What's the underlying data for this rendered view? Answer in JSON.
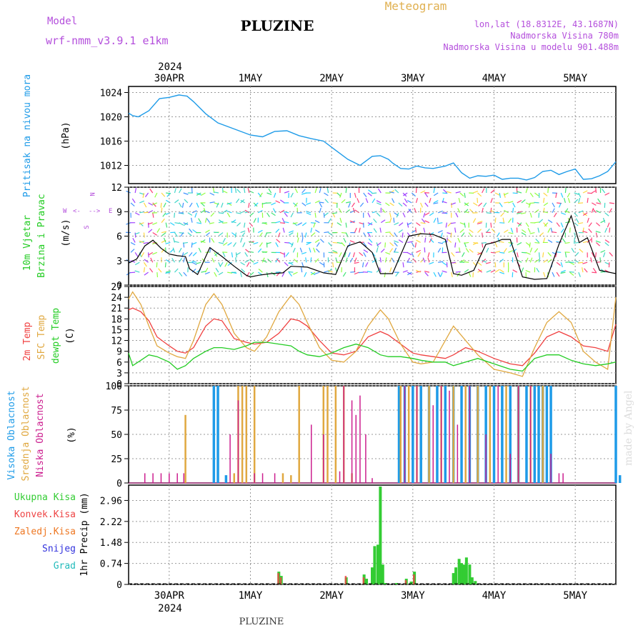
{
  "header": {
    "model_label": "Model",
    "model_value": "wrf-nmm_v3.9.1  e1km",
    "title": "PLUZINE",
    "meteogram": "Meteogram",
    "lonlat": "lon,lat (18.8312E, 43.1687N)",
    "altitude": "Nadmorska Visina 780m",
    "model_altitude": "Nadmorska Visina u modelu 901.488m",
    "footer": "PLUZINE",
    "watermark": "made by Angel"
  },
  "time_axis": {
    "year": "2024",
    "days": [
      "30APR",
      "1MAY",
      "2MAY",
      "3MAY",
      "4MAY",
      "5MAY"
    ],
    "day_positions": [
      0.5,
      1.5,
      2.5,
      3.5,
      4.5,
      5.5
    ],
    "range": [
      0,
      6
    ]
  },
  "colors": {
    "pressure": "#1e9be8",
    "temp2m": "#f04040",
    "sfc": "#e0a840",
    "dewpt": "#22cc22",
    "high_cloud": "#1e9be8",
    "mid_cloud": "#e0a840",
    "low_cloud": "#cc1f8f",
    "total_precip": "#33cc33",
    "conv_precip": "#ee4444",
    "frozen_precip": "#ee7722",
    "snow": "#3333dd",
    "grad": "#22bbbb",
    "model_text": "#b44fdc",
    "meteogram_text": "#e0b050"
  },
  "chart_data": [
    {
      "type": "line",
      "name": "pressure",
      "ylabel": "Pritisak na nivou mora",
      "unit": "(hPa)",
      "ylim": [
        1009,
        1025
      ],
      "yticks": [
        1012,
        1016,
        1020,
        1024
      ],
      "x": [
        0.0,
        0.05,
        0.12,
        0.25,
        0.38,
        0.5,
        0.62,
        0.72,
        0.8,
        0.95,
        1.1,
        1.3,
        1.5,
        1.65,
        1.8,
        1.95,
        2.1,
        2.25,
        2.4,
        2.55,
        2.7,
        2.85,
        3.0,
        3.1,
        3.2,
        3.25,
        3.35,
        3.45,
        3.55,
        3.65,
        3.75,
        3.9,
        4.0,
        4.1,
        4.2,
        4.3,
        4.4,
        4.5,
        4.6,
        4.7,
        4.8,
        4.9,
        5.0,
        5.1,
        5.2,
        5.3,
        5.4,
        5.5,
        5.6,
        5.7,
        5.8,
        5.9,
        6.0
      ],
      "values": [
        1020.6,
        1020.2,
        1020.0,
        1021.0,
        1023.0,
        1023.2,
        1023.6,
        1023.4,
        1022.5,
        1020.5,
        1019.0,
        1018.0,
        1017.0,
        1016.7,
        1017.6,
        1017.7,
        1016.9,
        1016.4,
        1016.0,
        1014.5,
        1013.0,
        1012.0,
        1013.5,
        1013.6,
        1013.0,
        1012.4,
        1011.5,
        1011.4,
        1011.9,
        1011.6,
        1011.5,
        1011.9,
        1012.4,
        1010.8,
        1009.9,
        1010.3,
        1010.2,
        1010.4,
        1009.7,
        1009.9,
        1009.9,
        1009.6,
        1010.0,
        1011.0,
        1011.2,
        1010.5,
        1011.0,
        1011.4,
        1009.7,
        1009.8,
        1010.3,
        1011.0,
        1012.6
      ]
    },
    {
      "type": "line",
      "name": "wind",
      "ylabel": "10m Vjetar Brzina i Pravac",
      "unit": "(m/s)",
      "compass": [
        "W",
        "<-",
        "-->",
        "E",
        "N",
        "S"
      ],
      "ylim": [
        0,
        12
      ],
      "yticks": [
        0,
        3,
        6,
        9,
        12
      ],
      "x": [
        0.0,
        0.1,
        0.2,
        0.3,
        0.4,
        0.5,
        0.6,
        0.7,
        0.75,
        0.85,
        1.0,
        1.15,
        1.3,
        1.45,
        1.5,
        1.6,
        1.75,
        1.9,
        2.0,
        2.2,
        2.4,
        2.55,
        2.7,
        2.85,
        3.0,
        3.1,
        3.25,
        3.45,
        3.6,
        3.75,
        3.9,
        4.0,
        4.1,
        4.25,
        4.4,
        4.5,
        4.6,
        4.7,
        4.85,
        5.0,
        5.15,
        5.3,
        5.45,
        5.55,
        5.65,
        5.8,
        6.0
      ],
      "values": [
        2.7,
        3.2,
        4.8,
        5.5,
        4.5,
        3.8,
        3.6,
        3.5,
        2.0,
        1.3,
        4.6,
        3.5,
        2.3,
        1.2,
        1.0,
        1.2,
        1.4,
        1.5,
        2.3,
        2.2,
        1.5,
        1.3,
        4.8,
        5.3,
        4.0,
        1.4,
        1.4,
        6.0,
        6.3,
        6.2,
        5.6,
        1.4,
        1.2,
        1.8,
        5.0,
        5.2,
        5.6,
        5.6,
        1.0,
        0.7,
        0.8,
        5.0,
        8.5,
        5.2,
        5.8,
        1.8,
        1.4
      ]
    },
    {
      "type": "line",
      "name": "temperature",
      "ylabel": "2m Temp SFC Temp dewpt Temp",
      "unit": "(C)",
      "ylim": [
        0,
        27
      ],
      "yticks": [
        0,
        3,
        6,
        9,
        12,
        15,
        18,
        21,
        24,
        27
      ],
      "series": [
        {
          "name": "2m Temp",
          "x": [
            0.0,
            0.05,
            0.15,
            0.25,
            0.35,
            0.5,
            0.6,
            0.7,
            0.8,
            0.95,
            1.05,
            1.15,
            1.3,
            1.45,
            1.55,
            1.7,
            1.85,
            2.0,
            2.1,
            2.2,
            2.35,
            2.5,
            2.65,
            2.8,
            2.95,
            3.1,
            3.2,
            3.35,
            3.5,
            3.6,
            3.75,
            3.9,
            4.0,
            4.15,
            4.3,
            4.5,
            4.7,
            4.85,
            5.0,
            5.15,
            5.3,
            5.45,
            5.6,
            5.75,
            5.9,
            6.0
          ],
          "values": [
            20.5,
            21.0,
            20.0,
            17.5,
            13.0,
            10.5,
            9.0,
            8.5,
            10.0,
            16.0,
            18.0,
            17.5,
            12.5,
            11.5,
            11.0,
            11.5,
            14.0,
            18.0,
            17.5,
            16.0,
            12.0,
            8.5,
            8.0,
            9.0,
            13.0,
            14.5,
            13.5,
            11.0,
            8.5,
            8.0,
            7.5,
            7.0,
            8.0,
            10.0,
            9.0,
            7.0,
            5.5,
            5.0,
            8.5,
            13.0,
            14.5,
            13.0,
            10.5,
            10.0,
            9.0,
            16.5
          ]
        },
        {
          "name": "SFC Temp",
          "x": [
            0.0,
            0.05,
            0.15,
            0.25,
            0.35,
            0.5,
            0.6,
            0.7,
            0.8,
            0.95,
            1.05,
            1.15,
            1.3,
            1.45,
            1.55,
            1.7,
            1.85,
            2.0,
            2.1,
            2.2,
            2.35,
            2.5,
            2.65,
            2.8,
            2.95,
            3.1,
            3.2,
            3.35,
            3.5,
            3.6,
            3.75,
            3.9,
            4.0,
            4.15,
            4.3,
            4.5,
            4.7,
            4.85,
            5.0,
            5.15,
            5.3,
            5.45,
            5.6,
            5.75,
            5.9,
            6.0
          ],
          "values": [
            23.5,
            25.5,
            22.0,
            16.0,
            10.5,
            8.5,
            7.5,
            7.0,
            12.0,
            22.0,
            25.0,
            22.0,
            14.0,
            10.0,
            9.0,
            13.0,
            20.0,
            24.5,
            22.0,
            17.0,
            10.0,
            6.5,
            6.0,
            9.0,
            16.0,
            20.5,
            18.0,
            11.0,
            6.0,
            5.5,
            6.0,
            12.0,
            16.0,
            12.0,
            8.0,
            4.0,
            3.0,
            2.0,
            10.0,
            17.0,
            20.0,
            17.0,
            9.0,
            6.0,
            4.0,
            24.0
          ]
        },
        {
          "name": "dewpt Temp",
          "x": [
            0.0,
            0.05,
            0.15,
            0.25,
            0.35,
            0.5,
            0.6,
            0.7,
            0.8,
            0.95,
            1.05,
            1.15,
            1.3,
            1.45,
            1.55,
            1.7,
            1.85,
            2.0,
            2.1,
            2.2,
            2.35,
            2.5,
            2.65,
            2.8,
            2.95,
            3.1,
            3.2,
            3.35,
            3.5,
            3.6,
            3.75,
            3.9,
            4.0,
            4.15,
            4.3,
            4.5,
            4.7,
            4.85,
            5.0,
            5.15,
            5.3,
            5.45,
            5.6,
            5.75,
            5.9,
            6.0
          ],
          "values": [
            8.5,
            5.0,
            6.5,
            8.0,
            7.5,
            6.0,
            4.0,
            5.0,
            7.0,
            9.0,
            10.0,
            10.0,
            9.5,
            10.5,
            11.5,
            11.5,
            11.0,
            10.5,
            9.0,
            8.0,
            7.5,
            8.5,
            10.0,
            11.0,
            10.0,
            8.0,
            7.5,
            7.5,
            7.0,
            6.5,
            6.0,
            6.0,
            5.0,
            6.0,
            7.0,
            5.5,
            4.0,
            3.5,
            7.0,
            8.0,
            8.0,
            6.5,
            5.5,
            5.0,
            5.5,
            6.0
          ]
        }
      ]
    },
    {
      "type": "bar",
      "name": "cloud_cover",
      "ylabel": "Visoka Oblacnost Srednja Oblacnost Niska Oblacnost",
      "unit": "(%)",
      "ylim": [
        0,
        100
      ],
      "yticks": [
        0,
        25,
        50,
        75,
        100
      ],
      "series": [
        {
          "name": "Visoka Oblacnost",
          "x": [
            1.05,
            1.1,
            1.2,
            3.33,
            3.4,
            3.5,
            3.6,
            3.7,
            3.8,
            3.9,
            4.0,
            4.1,
            4.2,
            4.3,
            4.4,
            4.5,
            4.6,
            4.7,
            4.8,
            4.9,
            5.0,
            5.05,
            5.1,
            5.15,
            5.2,
            6.0,
            6.05
          ],
          "values": [
            100,
            100,
            8,
            100,
            100,
            100,
            100,
            100,
            100,
            100,
            100,
            100,
            100,
            100,
            100,
            100,
            100,
            100,
            100,
            100,
            100,
            100,
            100,
            100,
            100,
            100,
            8
          ]
        },
        {
          "name": "Srednja Oblacnost",
          "x": [
            0.7,
            1.3,
            1.35,
            1.4,
            1.45,
            1.55,
            1.9,
            2.0,
            2.1,
            2.4,
            2.45,
            2.55,
            2.65,
            2.75,
            3.35,
            3.45,
            3.55,
            3.7,
            3.85,
            4.0,
            4.15,
            4.3,
            4.45,
            4.65,
            4.8,
            4.95,
            5.1
          ],
          "values": [
            70,
            10,
            100,
            100,
            100,
            100,
            10,
            8,
            100,
            100,
            100,
            100,
            100,
            10,
            100,
            100,
            100,
            100,
            100,
            100,
            100,
            100,
            100,
            100,
            100,
            100,
            100
          ]
        },
        {
          "name": "Niska Oblacnost",
          "x": [
            0.2,
            0.3,
            0.4,
            0.5,
            0.6,
            0.68,
            1.25,
            1.35,
            1.55,
            1.65,
            1.8,
            2.25,
            2.4,
            2.6,
            2.65,
            2.75,
            2.8,
            2.85,
            2.92,
            3.0,
            3.4,
            3.55,
            3.75,
            3.85,
            3.95,
            4.05,
            4.2,
            4.4,
            4.55,
            4.7,
            4.8,
            4.95,
            5.2,
            5.3,
            5.35
          ],
          "values": [
            10,
            10,
            10,
            10,
            10,
            10,
            50,
            85,
            10,
            10,
            10,
            60,
            50,
            12,
            100,
            85,
            70,
            90,
            50,
            5,
            100,
            100,
            80,
            100,
            95,
            60,
            100,
            50,
            100,
            30,
            100,
            100,
            30,
            10,
            10
          ]
        }
      ]
    },
    {
      "type": "bar",
      "name": "precipitation",
      "ylabel": "1hr Precip",
      "unit": "(mm)",
      "ylim": [
        0,
        3.5
      ],
      "yticks": [
        0,
        0.74,
        1.48,
        2.22,
        2.96
      ],
      "legend": [
        "Ukupna Kisa",
        "Konvek.Kisa",
        "Zaledj.Kisa",
        "Snijeg",
        "Grad"
      ],
      "series": [
        {
          "name": "Ukupna Kisa",
          "x": [
            1.85,
            1.88,
            2.68,
            2.9,
            2.93,
            3.0,
            3.03,
            3.07,
            3.1,
            3.13,
            3.16,
            3.3,
            3.42,
            3.48,
            3.52,
            4.0,
            4.03,
            4.07,
            4.1,
            4.13,
            4.16,
            4.2,
            4.23,
            4.27
          ],
          "values": [
            0.45,
            0.3,
            0.25,
            0.35,
            0.2,
            0.6,
            1.35,
            1.4,
            3.45,
            0.7,
            0.05,
            0.05,
            0.2,
            0.1,
            0.45,
            0.4,
            0.6,
            0.9,
            0.75,
            0.7,
            0.95,
            0.7,
            0.25,
            0.12
          ]
        },
        {
          "name": "Konvek.Kisa",
          "x": [
            1.85,
            1.88,
            2.68,
            2.9,
            3.42,
            3.52
          ],
          "values": [
            0.4,
            0.25,
            0.3,
            0.25,
            0.15,
            0.35
          ]
        }
      ]
    }
  ]
}
